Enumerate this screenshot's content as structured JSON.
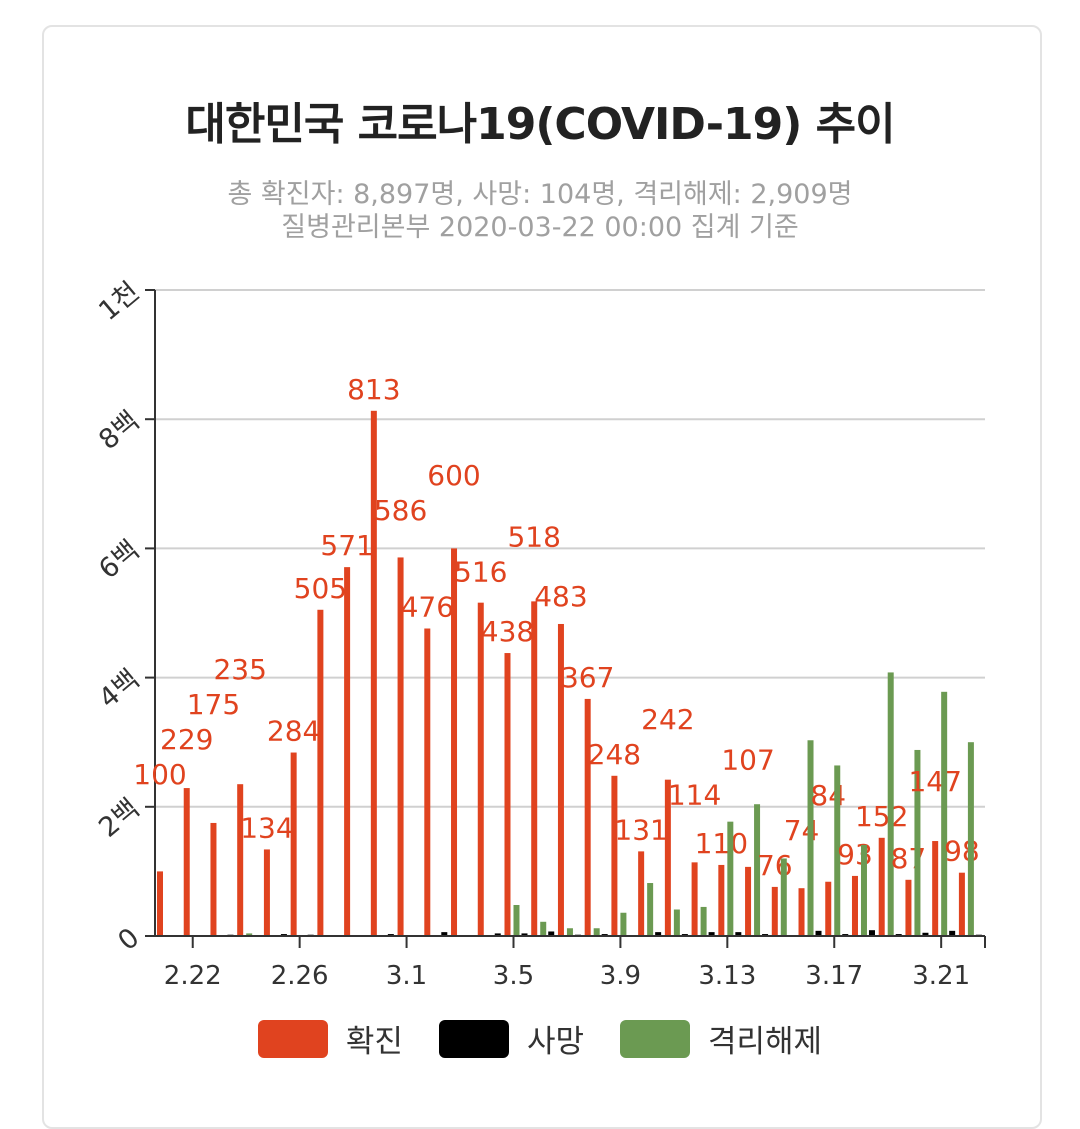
{
  "chart_data": {
    "type": "bar",
    "title": "대한민국 코로나19(COVID-19) 추이",
    "subtitle": [
      "총 확진자: 8,897명, 사망: 104명, 격리해제: 2,909명",
      "질병관리본부 2020-03-22 00:00 집계 기준"
    ],
    "xlabel": "",
    "ylabel": "",
    "ylim": [
      0,
      1000
    ],
    "yticks": [
      {
        "v": 0,
        "label": "0"
      },
      {
        "v": 200,
        "label": "2백"
      },
      {
        "v": 400,
        "label": "4백"
      },
      {
        "v": 600,
        "label": "6백"
      },
      {
        "v": 800,
        "label": "8백"
      },
      {
        "v": 1000,
        "label": "1천"
      }
    ],
    "x": [
      "2.21",
      "2.22",
      "2.23",
      "2.24",
      "2.25",
      "2.26",
      "2.27",
      "2.28",
      "2.29",
      "3.1",
      "3.2",
      "3.3",
      "3.4",
      "3.5",
      "3.6",
      "3.7",
      "3.8",
      "3.9",
      "3.10",
      "3.11",
      "3.12",
      "3.13",
      "3.14",
      "3.15",
      "3.16",
      "3.17",
      "3.18",
      "3.19",
      "3.20",
      "3.21",
      "3.22"
    ],
    "xticks": [
      "2.22",
      "2.26",
      "3.1",
      "3.5",
      "3.9",
      "3.13",
      "3.17",
      "3.21"
    ],
    "grid": true,
    "legend_position": "bottom",
    "series": [
      {
        "name": "확진",
        "color": "#e0431f",
        "labels": true,
        "values": [
          100,
          229,
          175,
          235,
          134,
          284,
          505,
          571,
          813,
          586,
          476,
          600,
          516,
          438,
          518,
          483,
          367,
          248,
          131,
          242,
          114,
          110,
          107,
          76,
          74,
          84,
          93,
          152,
          87,
          147,
          98
        ]
      },
      {
        "name": "사망",
        "color": "#000000",
        "labels": false,
        "values": [
          0,
          1,
          2,
          1,
          3,
          2,
          0,
          1,
          3,
          0,
          6,
          0,
          4,
          4,
          7,
          2,
          3,
          0,
          6,
          3,
          6,
          6,
          3,
          0,
          8,
          3,
          9,
          3,
          5,
          8,
          2
        ]
      },
      {
        "name": "격리해제",
        "color": "#6b9a52",
        "labels": false,
        "values": [
          0,
          0,
          0,
          4,
          0,
          0,
          1,
          1,
          0,
          0,
          1,
          0,
          0,
          48,
          22,
          12,
          12,
          36,
          82,
          41,
          45,
          177,
          204,
          120,
          303,
          264,
          141,
          408,
          288,
          378,
          300
        ]
      }
    ]
  }
}
